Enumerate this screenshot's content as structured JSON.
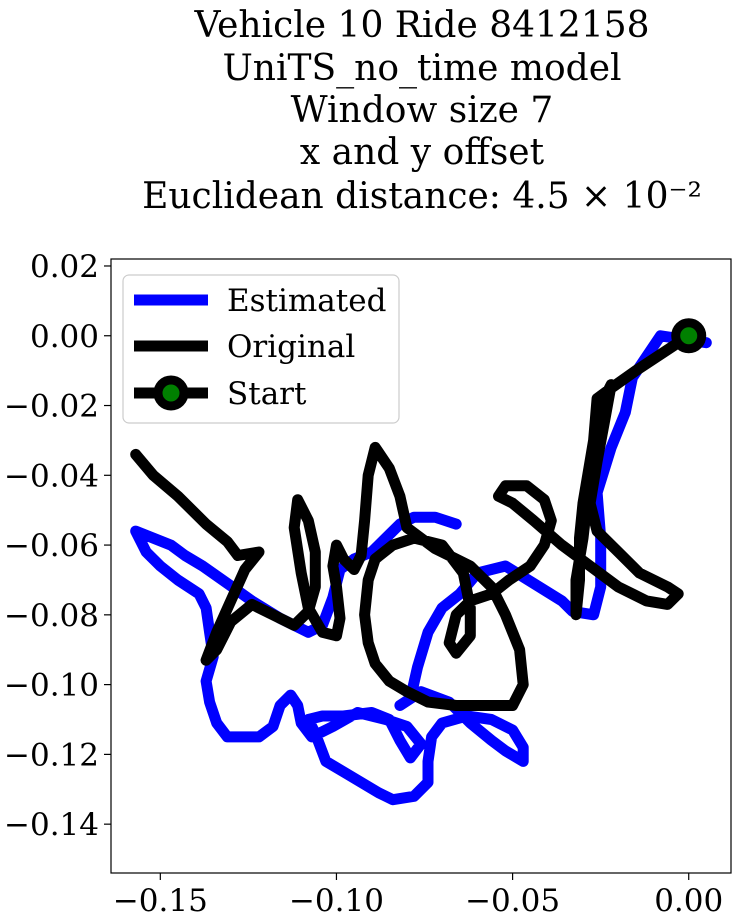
{
  "chart_data": {
    "type": "line",
    "title_lines": [
      "Vehicle 10 Ride 8412158",
      "UniTS_no_time model",
      "Window size 7",
      "x and y offset",
      "Euclidean distance: 4.5 × 10⁻²"
    ],
    "xlabel": "",
    "ylabel": "",
    "xlim": [
      -0.164,
      0.012
    ],
    "ylim": [
      -0.154,
      0.022
    ],
    "xticks": [
      -0.15,
      -0.1,
      -0.05,
      0.0
    ],
    "xtick_labels": [
      "−0.15",
      "−0.10",
      "−0.05",
      "0.00"
    ],
    "yticks": [
      0.02,
      0.0,
      -0.02,
      -0.04,
      -0.06,
      -0.08,
      -0.1,
      -0.12,
      -0.14
    ],
    "ytick_labels": [
      "0.02",
      "0.00",
      "−0.02",
      "−0.04",
      "−0.06",
      "−0.08",
      "−0.10",
      "−0.12",
      "−0.14"
    ],
    "grid": false,
    "legend_position": "top-left",
    "series": [
      {
        "name": "Estimated",
        "color": "#0000ff",
        "points": [
          [
            0.005,
            -0.002
          ],
          [
            -0.008,
            0.0
          ],
          [
            -0.016,
            -0.012
          ],
          [
            -0.018,
            -0.022
          ],
          [
            -0.022,
            -0.032
          ],
          [
            -0.026,
            -0.045
          ],
          [
            -0.025,
            -0.058
          ],
          [
            -0.025,
            -0.072
          ],
          [
            -0.027,
            -0.08
          ],
          [
            -0.033,
            -0.079
          ],
          [
            -0.036,
            -0.076
          ],
          [
            -0.044,
            -0.071
          ],
          [
            -0.052,
            -0.066
          ],
          [
            -0.06,
            -0.068
          ],
          [
            -0.065,
            -0.074
          ],
          [
            -0.07,
            -0.078
          ],
          [
            -0.074,
            -0.085
          ],
          [
            -0.077,
            -0.095
          ],
          [
            -0.079,
            -0.104
          ],
          [
            -0.082,
            -0.106
          ],
          [
            -0.076,
            -0.102
          ],
          [
            -0.068,
            -0.105
          ],
          [
            -0.062,
            -0.111
          ],
          [
            -0.056,
            -0.116
          ],
          [
            -0.052,
            -0.119
          ],
          [
            -0.047,
            -0.122
          ],
          [
            -0.047,
            -0.118
          ],
          [
            -0.05,
            -0.113
          ],
          [
            -0.056,
            -0.11
          ],
          [
            -0.063,
            -0.109
          ],
          [
            -0.07,
            -0.111
          ],
          [
            -0.073,
            -0.115
          ],
          [
            -0.074,
            -0.122
          ],
          [
            -0.074,
            -0.128
          ],
          [
            -0.078,
            -0.132
          ],
          [
            -0.084,
            -0.133
          ],
          [
            -0.088,
            -0.131
          ],
          [
            -0.093,
            -0.128
          ],
          [
            -0.098,
            -0.125
          ],
          [
            -0.103,
            -0.122
          ],
          [
            -0.106,
            -0.114
          ],
          [
            -0.108,
            -0.11
          ],
          [
            -0.104,
            -0.109
          ],
          [
            -0.098,
            -0.109
          ],
          [
            -0.09,
            -0.108
          ],
          [
            -0.085,
            -0.11
          ],
          [
            -0.082,
            -0.116
          ],
          [
            -0.079,
            -0.121
          ],
          [
            -0.076,
            -0.117
          ],
          [
            -0.08,
            -0.112
          ],
          [
            -0.086,
            -0.11
          ],
          [
            -0.094,
            -0.108
          ],
          [
            -0.101,
            -0.112
          ],
          [
            -0.107,
            -0.115
          ],
          [
            -0.11,
            -0.111
          ],
          [
            -0.111,
            -0.106
          ],
          [
            -0.113,
            -0.103
          ],
          [
            -0.116,
            -0.106
          ],
          [
            -0.118,
            -0.112
          ],
          [
            -0.122,
            -0.115
          ],
          [
            -0.127,
            -0.115
          ],
          [
            -0.131,
            -0.115
          ],
          [
            -0.134,
            -0.111
          ],
          [
            -0.136,
            -0.105
          ],
          [
            -0.137,
            -0.099
          ],
          [
            -0.135,
            -0.092
          ],
          [
            -0.136,
            -0.085
          ],
          [
            -0.137,
            -0.078
          ],
          [
            -0.139,
            -0.074
          ],
          [
            -0.145,
            -0.07
          ],
          [
            -0.15,
            -0.066
          ],
          [
            -0.154,
            -0.062
          ],
          [
            -0.157,
            -0.056
          ],
          [
            -0.152,
            -0.058
          ],
          [
            -0.147,
            -0.06
          ],
          [
            -0.143,
            -0.063
          ],
          [
            -0.138,
            -0.066
          ],
          [
            -0.131,
            -0.071
          ],
          [
            -0.124,
            -0.076
          ],
          [
            -0.116,
            -0.081
          ],
          [
            -0.108,
            -0.085
          ],
          [
            -0.104,
            -0.083
          ],
          [
            -0.101,
            -0.075
          ],
          [
            -0.099,
            -0.067
          ],
          [
            -0.095,
            -0.064
          ],
          [
            -0.09,
            -0.062
          ],
          [
            -0.086,
            -0.058
          ],
          [
            -0.082,
            -0.054
          ],
          [
            -0.078,
            -0.052
          ],
          [
            -0.072,
            -0.052
          ],
          [
            -0.066,
            -0.054
          ]
        ]
      },
      {
        "name": "Original",
        "color": "#000000",
        "points": [
          [
            0.0,
            0.0
          ],
          [
            -0.015,
            -0.01
          ],
          [
            -0.022,
            -0.015
          ],
          [
            -0.026,
            -0.018
          ],
          [
            -0.027,
            -0.03
          ],
          [
            -0.03,
            -0.048
          ],
          [
            -0.031,
            -0.058
          ],
          [
            -0.031,
            -0.07
          ],
          [
            -0.032,
            -0.08
          ],
          [
            -0.032,
            -0.07
          ],
          [
            -0.03,
            -0.058
          ],
          [
            -0.028,
            -0.04
          ],
          [
            -0.026,
            -0.028
          ],
          [
            -0.024,
            -0.018
          ],
          [
            -0.022,
            -0.014
          ],
          [
            -0.024,
            -0.025
          ],
          [
            -0.026,
            -0.036
          ],
          [
            -0.028,
            -0.048
          ],
          [
            -0.026,
            -0.056
          ],
          [
            -0.02,
            -0.062
          ],
          [
            -0.014,
            -0.068
          ],
          [
            -0.006,
            -0.072
          ],
          [
            -0.003,
            -0.074
          ],
          [
            -0.006,
            -0.077
          ],
          [
            -0.012,
            -0.076
          ],
          [
            -0.02,
            -0.072
          ],
          [
            -0.028,
            -0.066
          ],
          [
            -0.036,
            -0.06
          ],
          [
            -0.044,
            -0.053
          ],
          [
            -0.05,
            -0.048
          ],
          [
            -0.054,
            -0.046
          ],
          [
            -0.052,
            -0.043
          ],
          [
            -0.046,
            -0.043
          ],
          [
            -0.041,
            -0.047
          ],
          [
            -0.039,
            -0.053
          ],
          [
            -0.041,
            -0.06
          ],
          [
            -0.045,
            -0.066
          ],
          [
            -0.051,
            -0.07
          ],
          [
            -0.056,
            -0.074
          ],
          [
            -0.062,
            -0.076
          ],
          [
            -0.066,
            -0.08
          ],
          [
            -0.068,
            -0.088
          ],
          [
            -0.066,
            -0.091
          ],
          [
            -0.062,
            -0.086
          ],
          [
            -0.062,
            -0.078
          ],
          [
            -0.064,
            -0.068
          ],
          [
            -0.07,
            -0.06
          ],
          [
            -0.078,
            -0.058
          ],
          [
            -0.084,
            -0.06
          ],
          [
            -0.089,
            -0.064
          ],
          [
            -0.091,
            -0.07
          ],
          [
            -0.092,
            -0.08
          ],
          [
            -0.091,
            -0.088
          ],
          [
            -0.089,
            -0.094
          ],
          [
            -0.085,
            -0.099
          ],
          [
            -0.08,
            -0.102
          ],
          [
            -0.074,
            -0.105
          ],
          [
            -0.066,
            -0.106
          ],
          [
            -0.058,
            -0.106
          ],
          [
            -0.05,
            -0.106
          ],
          [
            -0.047,
            -0.1
          ],
          [
            -0.048,
            -0.09
          ],
          [
            -0.052,
            -0.08
          ],
          [
            -0.056,
            -0.072
          ],
          [
            -0.062,
            -0.066
          ],
          [
            -0.072,
            -0.061
          ],
          [
            -0.08,
            -0.055
          ],
          [
            -0.082,
            -0.046
          ],
          [
            -0.085,
            -0.038
          ],
          [
            -0.089,
            -0.032
          ],
          [
            -0.091,
            -0.04
          ],
          [
            -0.092,
            -0.053
          ],
          [
            -0.093,
            -0.063
          ],
          [
            -0.095,
            -0.067
          ],
          [
            -0.098,
            -0.064
          ],
          [
            -0.1,
            -0.06
          ],
          [
            -0.101,
            -0.066
          ],
          [
            -0.1,
            -0.072
          ],
          [
            -0.099,
            -0.081
          ],
          [
            -0.1,
            -0.086
          ],
          [
            -0.104,
            -0.085
          ],
          [
            -0.108,
            -0.078
          ],
          [
            -0.11,
            -0.068
          ],
          [
            -0.112,
            -0.055
          ],
          [
            -0.111,
            -0.047
          ],
          [
            -0.108,
            -0.053
          ],
          [
            -0.106,
            -0.062
          ],
          [
            -0.106,
            -0.072
          ],
          [
            -0.108,
            -0.079
          ],
          [
            -0.112,
            -0.083
          ],
          [
            -0.118,
            -0.08
          ],
          [
            -0.124,
            -0.077
          ],
          [
            -0.13,
            -0.082
          ],
          [
            -0.134,
            -0.09
          ],
          [
            -0.137,
            -0.093
          ],
          [
            -0.134,
            -0.085
          ],
          [
            -0.13,
            -0.076
          ],
          [
            -0.126,
            -0.067
          ],
          [
            -0.122,
            -0.062
          ],
          [
            -0.128,
            -0.063
          ],
          [
            -0.131,
            -0.059
          ],
          [
            -0.137,
            -0.054
          ],
          [
            -0.145,
            -0.046
          ],
          [
            -0.152,
            -0.04
          ],
          [
            -0.157,
            -0.034
          ]
        ]
      },
      {
        "name": "Start",
        "color": "#000000",
        "marker_color": "#008000",
        "points": [
          [
            0.0,
            0.0
          ]
        ]
      }
    ]
  }
}
